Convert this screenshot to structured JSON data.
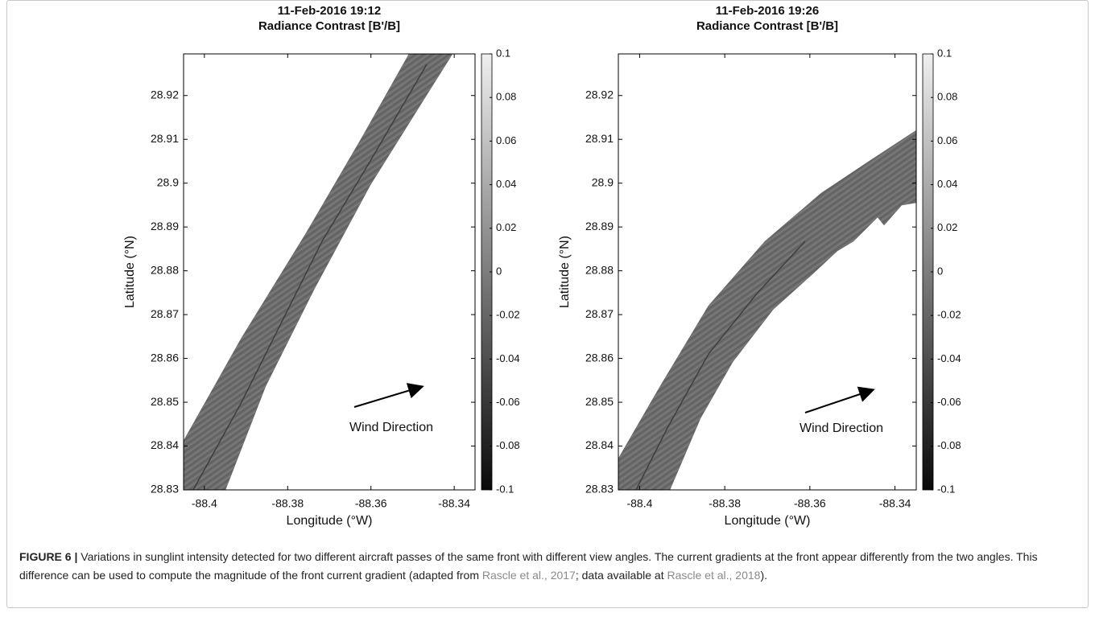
{
  "chart_data": [
    {
      "type": "image",
      "title": "11-Feb-2016 19:12",
      "subtitle": "Radiance Contrast [B'/B]",
      "x_label": "Longitude (°W)",
      "y_label": "Latitude (°N)",
      "xlim": [
        -88.405,
        -88.335
      ],
      "xticks": [
        -88.4,
        -88.38,
        -88.36,
        -88.34
      ],
      "ylim": [
        28.83,
        28.9295
      ],
      "yticks": [
        28.83,
        28.84,
        28.85,
        28.86,
        28.87,
        28.88,
        28.89,
        28.9,
        28.91,
        28.92
      ],
      "colorbar_lim": [
        -0.1,
        0.1
      ],
      "colorbar_ticks": [
        0.1,
        0.08,
        0.06,
        0.04,
        0.02,
        0,
        -0.02,
        -0.04,
        -0.06,
        -0.08,
        -0.1
      ],
      "annotation": "Wind Direction"
    },
    {
      "type": "image",
      "title": "11-Feb-2016 19:26",
      "subtitle": "Radiance Contrast [B'/B]",
      "x_label": "Longitude (°W)",
      "y_label": "Latitude (°N)",
      "xlim": [
        -88.405,
        -88.335
      ],
      "xticks": [
        -88.4,
        -88.38,
        -88.36,
        -88.34
      ],
      "ylim": [
        28.83,
        28.9295
      ],
      "yticks": [
        28.83,
        28.84,
        28.85,
        28.86,
        28.87,
        28.88,
        28.89,
        28.9,
        28.91,
        28.92
      ],
      "colorbar_lim": [
        -0.1,
        0.1
      ],
      "colorbar_ticks": [
        0.1,
        0.08,
        0.06,
        0.04,
        0.02,
        0,
        -0.02,
        -0.04,
        -0.06,
        -0.08,
        -0.1
      ],
      "annotation": "Wind Direction"
    }
  ],
  "caption": {
    "label": "FIGURE 6 |",
    "parts": [
      "Variations in sunglint intensity detected for two different aircraft passes of the same front with different view angles. The current gradients at the front appear differently from the two angles. This difference can be used to compute the magnitude of the front current gradient (adapted from ",
      "Rascle et al., 2017",
      "; data available at ",
      "Rascle et al., 2018",
      ")."
    ]
  }
}
